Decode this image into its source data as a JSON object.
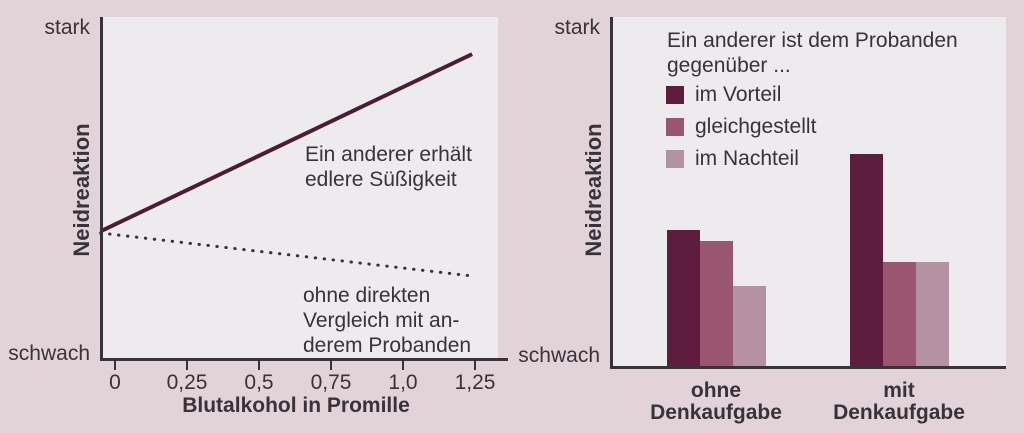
{
  "palette": {
    "page_bg": "#e2d3d9",
    "plot_bg": "#edebee",
    "axis": "#38323a",
    "text": "#38323a",
    "solid_line": "#4e1a37",
    "dotted_line": "#38323a",
    "series_dark": "#5e1c3e",
    "series_medium": "#9a5571",
    "series_light": "#b592a3"
  },
  "chart_data": [
    {
      "type": "line",
      "title": "",
      "xlabel": "Blutalkohol in Promille",
      "ylabel": "Neidreaktion",
      "y_top_label": "stark",
      "y_bottom_label": "schwach",
      "x_ticks": [
        0,
        0.25,
        0.5,
        0.75,
        1.0,
        1.25
      ],
      "x_tick_labels": [
        "0",
        "0,25",
        "0,5",
        "0,75",
        "1,0",
        "1,25"
      ],
      "xlim": [
        -0.05,
        1.3
      ],
      "ylim": [
        0,
        1
      ],
      "grid": false,
      "series": [
        {
          "name": "Ein anderer erhält edlere Süßigkeit",
          "style": "solid",
          "annotation": "Ein anderer erhält\nedlere Süßigkeit",
          "points": [
            [
              -0.05,
              0.38
            ],
            [
              1.24,
              0.895
            ]
          ]
        },
        {
          "name": "ohne direkten Vergleich mit anderem Probanden",
          "style": "dotted",
          "annotation": "ohne direkten\nVergleich mit an-\nderem Probanden",
          "points": [
            [
              -0.05,
              0.375
            ],
            [
              1.24,
              0.25
            ]
          ]
        }
      ]
    },
    {
      "type": "bar",
      "title": "",
      "ylabel": "Neidreaktion",
      "y_top_label": "stark",
      "y_bottom_label": "schwach",
      "legend_title": "Ein anderer ist dem Probanden\ngegenüber ...",
      "legend_position": "top-inside",
      "grid": false,
      "categories": [
        "ohne Denkaufgabe",
        "mit Denkaufgabe"
      ],
      "category_labels": [
        "ohne\nDenkaufgabe",
        "mit\nDenkaufgabe"
      ],
      "ylim": [
        0,
        1
      ],
      "series": [
        {
          "name": "im Vorteil",
          "color": "#5e1c3e",
          "values": [
            0.39,
            0.61
          ]
        },
        {
          "name": "gleichgestellt",
          "color": "#9a5571",
          "values": [
            0.36,
            0.3
          ]
        },
        {
          "name": "im Nachteil",
          "color": "#b592a3",
          "values": [
            0.23,
            0.3
          ]
        }
      ]
    }
  ]
}
